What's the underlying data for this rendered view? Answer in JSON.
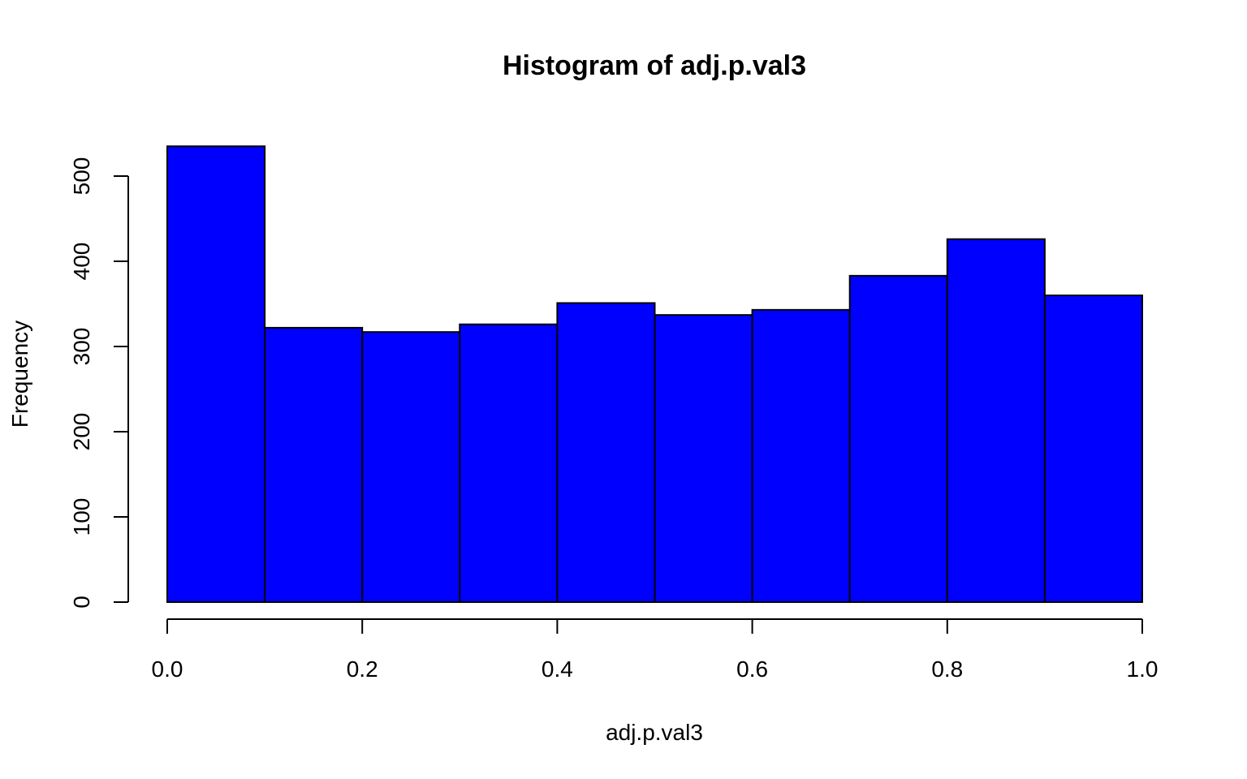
{
  "chart_data": {
    "type": "bar",
    "subtype": "histogram",
    "title": "Histogram of adj.p.val3",
    "xlabel": "adj.p.val3",
    "ylabel": "Frequency",
    "bin_edges": [
      0.0,
      0.1,
      0.2,
      0.3,
      0.4,
      0.5,
      0.6,
      0.7,
      0.8,
      0.9,
      1.0
    ],
    "values": [
      535,
      322,
      317,
      326,
      351,
      337,
      343,
      383,
      426,
      360
    ],
    "xlim": [
      0.0,
      1.0
    ],
    "ylim": [
      0,
      535
    ],
    "x_ticks": [
      "0.0",
      "0.2",
      "0.4",
      "0.6",
      "0.8",
      "1.0"
    ],
    "y_ticks": [
      "0",
      "100",
      "200",
      "300",
      "400",
      "500"
    ],
    "bar_color": "#0000ff",
    "border_color": "#000000",
    "grid": false,
    "legend": "none"
  }
}
